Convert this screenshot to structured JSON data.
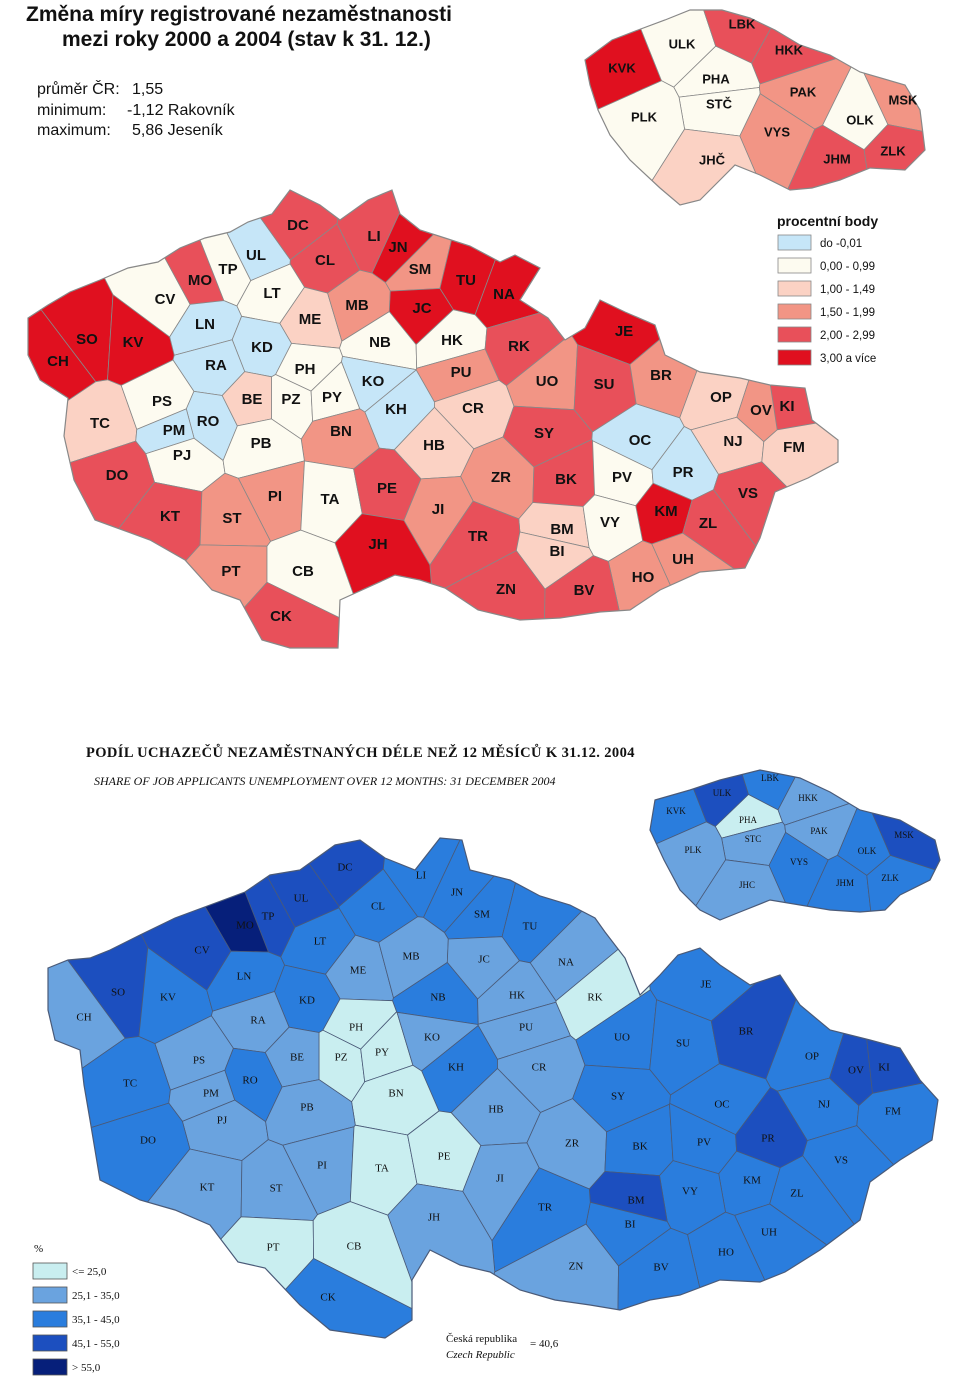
{
  "colors": {
    "m1": [
      "#c6e6f8",
      "#fdfbf0",
      "#fbd2c4",
      "#f29585",
      "#e8505a",
      "#e0101f"
    ],
    "m2": [
      "#c9eef0",
      "#6aa3df",
      "#2a7ddd",
      "#1c4fbf",
      "#061f7a"
    ],
    "border_m1": "#888888",
    "border_m2": "#4a5a78"
  },
  "map1": {
    "title_line1": "Změna míry registrované nezaměstnanosti",
    "title_line2": "mezi roky 2000 a 2004  (stav k 31. 12.)",
    "stats": [
      {
        "label": "průměr ČR:",
        "value": "1,55"
      },
      {
        "label": "minimum:",
        "value": "-1,12 Rakovník"
      },
      {
        "label": "maximum:",
        "value": "5,86 Jeseník"
      }
    ],
    "legend_title": "procentní body",
    "legend": [
      {
        "label": "do  -0,01",
        "cls": 0
      },
      {
        "label": "0,00 - 0,99",
        "cls": 1
      },
      {
        "label": "1,00 - 1,49",
        "cls": 2
      },
      {
        "label": "1,50 - 1,99",
        "cls": 3
      },
      {
        "label": "2,00 - 2,99",
        "cls": 4
      },
      {
        "label": "3,00 a více",
        "cls": 5
      }
    ],
    "districts": [
      {
        "code": "CH",
        "cls": 5
      },
      {
        "code": "SO",
        "cls": 5
      },
      {
        "code": "KV",
        "cls": 5
      },
      {
        "code": "CV",
        "cls": 1
      },
      {
        "code": "MO",
        "cls": 4
      },
      {
        "code": "TP",
        "cls": 1
      },
      {
        "code": "UL",
        "cls": 0
      },
      {
        "code": "DC",
        "cls": 4
      },
      {
        "code": "CL",
        "cls": 4
      },
      {
        "code": "LI",
        "cls": 4
      },
      {
        "code": "JN",
        "cls": 5
      },
      {
        "code": "SM",
        "cls": 3
      },
      {
        "code": "TU",
        "cls": 5
      },
      {
        "code": "NA",
        "cls": 5
      },
      {
        "code": "LT",
        "cls": 1
      },
      {
        "code": "LN",
        "cls": 0
      },
      {
        "code": "ME",
        "cls": 2
      },
      {
        "code": "MB",
        "cls": 3
      },
      {
        "code": "JC",
        "cls": 5
      },
      {
        "code": "KD",
        "cls": 0
      },
      {
        "code": "RA",
        "cls": 0
      },
      {
        "code": "NB",
        "cls": 1
      },
      {
        "code": "HK",
        "cls": 1
      },
      {
        "code": "RK",
        "cls": 4
      },
      {
        "code": "JE",
        "cls": 5
      },
      {
        "code": "PH",
        "cls": 1
      },
      {
        "code": "PZ",
        "cls": 1
      },
      {
        "code": "PY",
        "cls": 1
      },
      {
        "code": "KO",
        "cls": 0
      },
      {
        "code": "PU",
        "cls": 3
      },
      {
        "code": "UO",
        "cls": 3
      },
      {
        "code": "SU",
        "cls": 4
      },
      {
        "code": "BR",
        "cls": 3
      },
      {
        "code": "TC",
        "cls": 2
      },
      {
        "code": "PS",
        "cls": 1
      },
      {
        "code": "RO",
        "cls": 0
      },
      {
        "code": "BE",
        "cls": 2
      },
      {
        "code": "KH",
        "cls": 0
      },
      {
        "code": "CR",
        "cls": 2
      },
      {
        "code": "OP",
        "cls": 2
      },
      {
        "code": "KI",
        "cls": 4
      },
      {
        "code": "OV",
        "cls": 3
      },
      {
        "code": "PM",
        "cls": 0
      },
      {
        "code": "BN",
        "cls": 3
      },
      {
        "code": "SY",
        "cls": 4
      },
      {
        "code": "OC",
        "cls": 0
      },
      {
        "code": "NJ",
        "cls": 2
      },
      {
        "code": "FM",
        "cls": 2
      },
      {
        "code": "PJ",
        "cls": 1
      },
      {
        "code": "PB",
        "cls": 1
      },
      {
        "code": "HB",
        "cls": 2
      },
      {
        "code": "DO",
        "cls": 4
      },
      {
        "code": "ZR",
        "cls": 3
      },
      {
        "code": "BK",
        "cls": 4
      },
      {
        "code": "PV",
        "cls": 1
      },
      {
        "code": "PR",
        "cls": 0
      },
      {
        "code": "PI",
        "cls": 3
      },
      {
        "code": "TA",
        "cls": 1
      },
      {
        "code": "PE",
        "cls": 4
      },
      {
        "code": "KT",
        "cls": 4
      },
      {
        "code": "VS",
        "cls": 4
      },
      {
        "code": "ST",
        "cls": 3
      },
      {
        "code": "JI",
        "cls": 3
      },
      {
        "code": "KM",
        "cls": 5
      },
      {
        "code": "BM",
        "cls": 2
      },
      {
        "code": "VY",
        "cls": 1
      },
      {
        "code": "ZL",
        "cls": 4
      },
      {
        "code": "TR",
        "cls": 4
      },
      {
        "code": "JH",
        "cls": 5
      },
      {
        "code": "BI",
        "cls": 2
      },
      {
        "code": "UH",
        "cls": 3
      },
      {
        "code": "PT",
        "cls": 3
      },
      {
        "code": "CB",
        "cls": 1
      },
      {
        "code": "HO",
        "cls": 3
      },
      {
        "code": "ZN",
        "cls": 4
      },
      {
        "code": "BV",
        "cls": 4
      },
      {
        "code": "CK",
        "cls": 4
      }
    ],
    "regions": [
      {
        "code": "KVK",
        "cls": 5
      },
      {
        "code": "ULK",
        "cls": 1
      },
      {
        "code": "LBK",
        "cls": 4
      },
      {
        "code": "HKK",
        "cls": 4
      },
      {
        "code": "PHA",
        "cls": 1
      },
      {
        "code": "STČ",
        "cls": 1
      },
      {
        "code": "PAK",
        "cls": 3
      },
      {
        "code": "MSK",
        "cls": 3
      },
      {
        "code": "PLK",
        "cls": 1
      },
      {
        "code": "OLK",
        "cls": 1
      },
      {
        "code": "VYS",
        "cls": 3
      },
      {
        "code": "ZLK",
        "cls": 4
      },
      {
        "code": "JHČ",
        "cls": 2
      },
      {
        "code": "JHM",
        "cls": 4
      }
    ]
  },
  "map2": {
    "title": "PODÍL  UCHAZEČŮ NEZAMĚSTNANÝCH DÉLE NEŽ 12 MĚSÍCŮ K 31.12. 2004",
    "subtitle": "SHARE OF JOB APPLICANTS UNEMPLOYMENT OVER 12 MONTHS: 31 DECEMBER 2004",
    "legend_title": "%",
    "legend": [
      {
        "label": "<= 25,0",
        "cls": 0
      },
      {
        "label": "25,1 - 35,0",
        "cls": 1
      },
      {
        "label": "35,1 - 45,0",
        "cls": 2
      },
      {
        "label": "45,1 - 55,0",
        "cls": 3
      },
      {
        "label": "> 55,0",
        "cls": 4
      }
    ],
    "note_cz": "Česká republika",
    "note_en": "Czech Republic",
    "note_value": "= 40,6",
    "districts": [
      {
        "code": "DC",
        "cls": 3
      },
      {
        "code": "UL",
        "cls": 3
      },
      {
        "code": "TP",
        "cls": 3
      },
      {
        "code": "MO",
        "cls": 4
      },
      {
        "code": "CV",
        "cls": 3
      },
      {
        "code": "SO",
        "cls": 3
      },
      {
        "code": "KV",
        "cls": 2
      },
      {
        "code": "CH",
        "cls": 1
      },
      {
        "code": "LN",
        "cls": 2
      },
      {
        "code": "LT",
        "cls": 2
      },
      {
        "code": "CL",
        "cls": 2
      },
      {
        "code": "LI",
        "cls": 2
      },
      {
        "code": "JN",
        "cls": 2
      },
      {
        "code": "SM",
        "cls": 2
      },
      {
        "code": "TU",
        "cls": 2
      },
      {
        "code": "NA",
        "cls": 1
      },
      {
        "code": "ME",
        "cls": 1
      },
      {
        "code": "MB",
        "cls": 1
      },
      {
        "code": "JC",
        "cls": 1
      },
      {
        "code": "RK",
        "cls": 0
      },
      {
        "code": "KD",
        "cls": 2
      },
      {
        "code": "RA",
        "cls": 1
      },
      {
        "code": "NB",
        "cls": 2
      },
      {
        "code": "HK",
        "cls": 1
      },
      {
        "code": "PH",
        "cls": 0
      },
      {
        "code": "PZ",
        "cls": 0
      },
      {
        "code": "PY",
        "cls": 0
      },
      {
        "code": "KO",
        "cls": 1
      },
      {
        "code": "PU",
        "cls": 1
      },
      {
        "code": "JE",
        "cls": 2
      },
      {
        "code": "UO",
        "cls": 2
      },
      {
        "code": "SU",
        "cls": 2
      },
      {
        "code": "BR",
        "cls": 3
      },
      {
        "code": "OP",
        "cls": 2
      },
      {
        "code": "OV",
        "cls": 3
      },
      {
        "code": "KI",
        "cls": 3
      },
      {
        "code": "PS",
        "cls": 1
      },
      {
        "code": "BE",
        "cls": 1
      },
      {
        "code": "RO",
        "cls": 2
      },
      {
        "code": "TC",
        "cls": 2
      },
      {
        "code": "KH",
        "cls": 2
      },
      {
        "code": "CR",
        "cls": 1
      },
      {
        "code": "PM",
        "cls": 1
      },
      {
        "code": "BN",
        "cls": 0
      },
      {
        "code": "HB",
        "cls": 1
      },
      {
        "code": "SY",
        "cls": 2
      },
      {
        "code": "OC",
        "cls": 2
      },
      {
        "code": "NJ",
        "cls": 2
      },
      {
        "code": "FM",
        "cls": 2
      },
      {
        "code": "PJ",
        "cls": 1
      },
      {
        "code": "PB",
        "cls": 1
      },
      {
        "code": "DO",
        "cls": 2
      },
      {
        "code": "ZR",
        "cls": 1
      },
      {
        "code": "BK",
        "cls": 2
      },
      {
        "code": "PV",
        "cls": 2
      },
      {
        "code": "PR",
        "cls": 3
      },
      {
        "code": "PI",
        "cls": 1
      },
      {
        "code": "TA",
        "cls": 0
      },
      {
        "code": "PE",
        "cls": 0
      },
      {
        "code": "KT",
        "cls": 1
      },
      {
        "code": "ST",
        "cls": 1
      },
      {
        "code": "JI",
        "cls": 1
      },
      {
        "code": "KM",
        "cls": 2
      },
      {
        "code": "VS",
        "cls": 2
      },
      {
        "code": "VY",
        "cls": 2
      },
      {
        "code": "BM",
        "cls": 3
      },
      {
        "code": "BI",
        "cls": 2
      },
      {
        "code": "ZL",
        "cls": 2
      },
      {
        "code": "TR",
        "cls": 2
      },
      {
        "code": "JH",
        "cls": 1
      },
      {
        "code": "UH",
        "cls": 2
      },
      {
        "code": "PT",
        "cls": 0
      },
      {
        "code": "CB",
        "cls": 0
      },
      {
        "code": "HO",
        "cls": 2
      },
      {
        "code": "ZN",
        "cls": 1
      },
      {
        "code": "BV",
        "cls": 2
      },
      {
        "code": "CK",
        "cls": 2
      }
    ],
    "regions": [
      {
        "code": "ULK",
        "cls": 3
      },
      {
        "code": "LBK",
        "cls": 2
      },
      {
        "code": "KVK",
        "cls": 2
      },
      {
        "code": "HKK",
        "cls": 1
      },
      {
        "code": "PHA",
        "cls": 0
      },
      {
        "code": "STC",
        "cls": 1
      },
      {
        "code": "PAK",
        "cls": 1
      },
      {
        "code": "MSK",
        "cls": 3
      },
      {
        "code": "PLK",
        "cls": 1
      },
      {
        "code": "VYS",
        "cls": 2
      },
      {
        "code": "OLK",
        "cls": 2
      },
      {
        "code": "JHC",
        "cls": 1
      },
      {
        "code": "JHM",
        "cls": 2
      },
      {
        "code": "ZLK",
        "cls": 2
      }
    ]
  }
}
